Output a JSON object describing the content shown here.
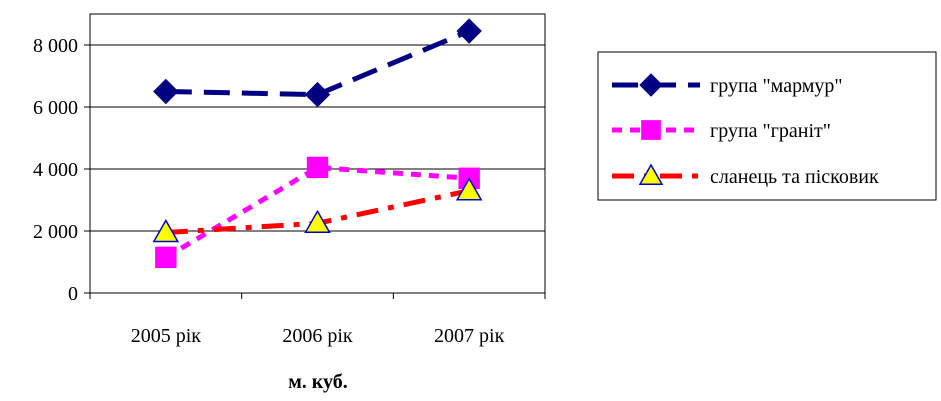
{
  "chart_data": {
    "type": "line",
    "categories": [
      "2005 рік",
      "2006 рік",
      "2007 рік"
    ],
    "y_tick_labels": [
      "0",
      "2 000",
      "4 000",
      "6 000",
      "8 000"
    ],
    "y_ticks": [
      0,
      2000,
      4000,
      6000,
      8000
    ],
    "ylim": [
      0,
      9000
    ],
    "xlabel": "м. куб.",
    "ylabel": "",
    "title": "",
    "grid": "horizontal",
    "legend_position": "right",
    "series": [
      {
        "name": "група \"мармур\"",
        "values": [
          6500,
          6400,
          8450
        ],
        "color": "#000080",
        "marker": "diamond",
        "dash": "dashed"
      },
      {
        "name": "група \"граніт\"",
        "values": [
          1150,
          4050,
          3700
        ],
        "color": "#FF00FF",
        "marker": "square",
        "dash": "dotted"
      },
      {
        "name": "сланець та пісковик",
        "values": [
          1950,
          2250,
          3300
        ],
        "color": "#FF0000",
        "marker": "triangle",
        "dash": "dashdot",
        "marker_fill": "#FFFF00",
        "marker_stroke": "#0000CC"
      }
    ]
  }
}
